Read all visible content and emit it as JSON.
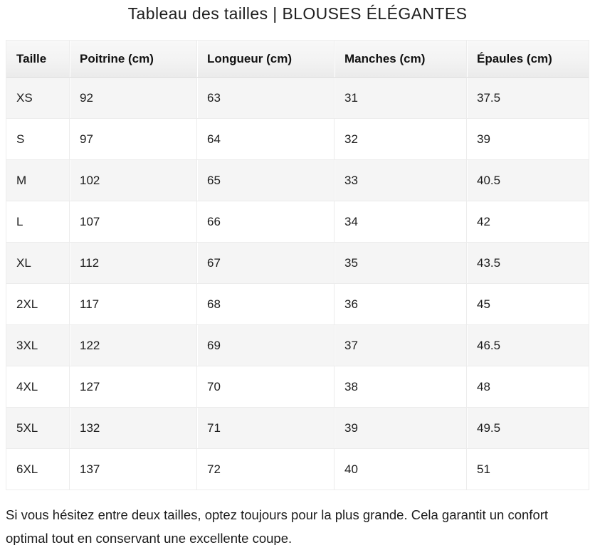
{
  "page": {
    "title": "Tableau des tailles | BLOUSES ÉLÉGANTES",
    "fit_note": "Si vous hésitez entre deux tailles, optez toujours pour la plus grande. Cela garantit un confort optimal tout en conservant une excellente coupe."
  },
  "size_table": {
    "columns": [
      "Taille",
      "Poitrine (cm)",
      "Longueur (cm)",
      "Manches (cm)",
      "Épaules (cm)"
    ],
    "rows": [
      [
        "XS",
        "92",
        "63",
        "31",
        "37.5"
      ],
      [
        "S",
        "97",
        "64",
        "32",
        "39"
      ],
      [
        "M",
        "102",
        "65",
        "33",
        "40.5"
      ],
      [
        "L",
        "107",
        "66",
        "34",
        "42"
      ],
      [
        "XL",
        "112",
        "67",
        "35",
        "43.5"
      ],
      [
        "2XL",
        "117",
        "68",
        "36",
        "45"
      ],
      [
        "3XL",
        "122",
        "69",
        "37",
        "46.5"
      ],
      [
        "4XL",
        "127",
        "70",
        "38",
        "48"
      ],
      [
        "5XL",
        "132",
        "71",
        "39",
        "49.5"
      ],
      [
        "6XL",
        "137",
        "72",
        "40",
        "51"
      ]
    ]
  },
  "chart_data": {
    "type": "table",
    "title": "Tableau des tailles | BLOUSES ÉLÉGANTES",
    "columns": [
      "Taille",
      "Poitrine (cm)",
      "Longueur (cm)",
      "Manches (cm)",
      "Épaules (cm)"
    ],
    "rows": [
      [
        "XS",
        92,
        63,
        31,
        37.5
      ],
      [
        "S",
        97,
        64,
        32,
        39
      ],
      [
        "M",
        102,
        65,
        33,
        40.5
      ],
      [
        "L",
        107,
        66,
        34,
        42
      ],
      [
        "XL",
        112,
        67,
        35,
        43.5
      ],
      [
        "2XL",
        117,
        68,
        36,
        45
      ],
      [
        "3XL",
        122,
        69,
        37,
        46.5
      ],
      [
        "4XL",
        127,
        70,
        38,
        48
      ],
      [
        "5XL",
        132,
        71,
        39,
        49.5
      ],
      [
        "6XL",
        137,
        72,
        40,
        51
      ]
    ]
  },
  "colors": {
    "page_background": "#ffffff",
    "header_background_top": "#f8f8f8",
    "header_background_bottom": "#ebebeb",
    "stripe_row_background": "#f5f5f5",
    "cell_border": "#ececec",
    "header_bottom_border": "#d9d9d9",
    "text": "#1c1c1c"
  }
}
